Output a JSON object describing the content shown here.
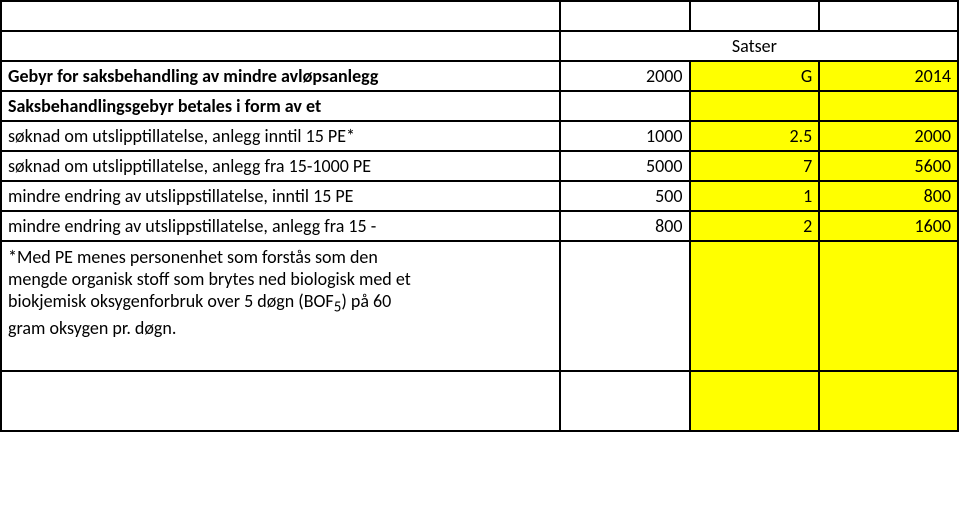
{
  "colors": {
    "highlight": "#ffff00",
    "border": "#000000",
    "background": "#ffffff",
    "text": "#000000"
  },
  "fontsize": 18,
  "header": {
    "satser": "Satser",
    "year_left": "2000",
    "g": "G",
    "year_right": "2014"
  },
  "title_rows": {
    "r1": "Gebyr for saksbehandling av mindre avløpsanlegg",
    "r2": "Saksbehandlingsgebyr betales i form av et"
  },
  "rows": [
    {
      "label": "søknad om utslipptillatelse, anlegg inntil 15 PE*",
      "c1": "1000",
      "c2": "2.5",
      "c3": "2000"
    },
    {
      "label": "søknad om utslipptillatelse, anlegg fra 15-1000 PE",
      "c1": "5000",
      "c2": "7",
      "c3": "5600"
    },
    {
      "label": "mindre endring av utslippstillatelse, inntil 15 PE",
      "c1": "500",
      "c2": "1",
      "c3": "800"
    },
    {
      "label": "mindre endring av utslippstillatelse, anlegg fra 15 -",
      "c1": "800",
      "c2": "2",
      "c3": "1600"
    }
  ],
  "footnote": {
    "l1": "*Med PE menes personenhet som forstås som den",
    "l2": "mengde organisk stoff som brytes ned biologisk med et",
    "l3": "biokjemisk oksygenforbruk over 5 døgn (BOF",
    "sub": "5",
    "l3b": ") på 60",
    "l4": "gram oksygen pr. døgn."
  }
}
